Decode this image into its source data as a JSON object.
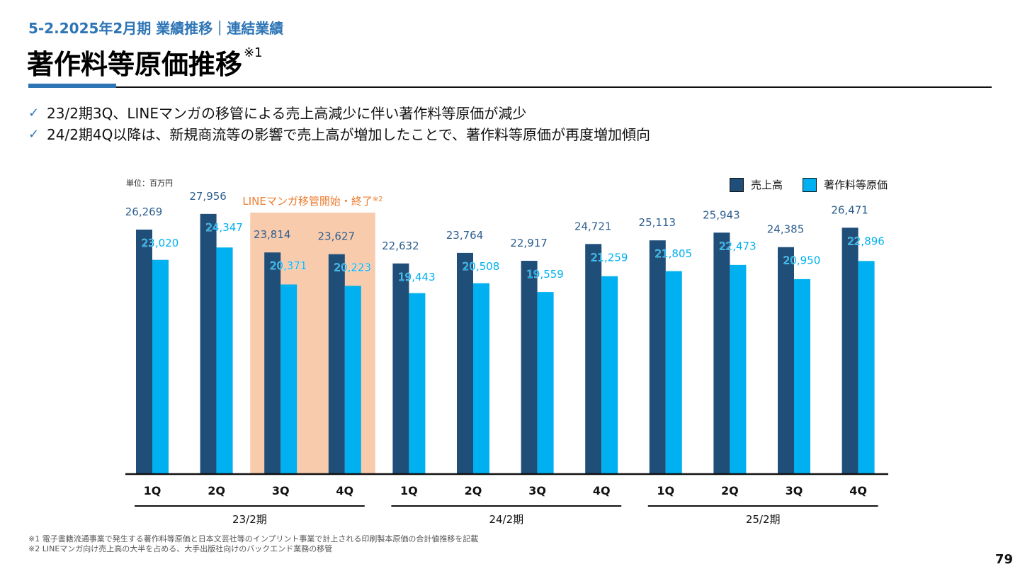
{
  "header": {
    "section_title": "5-2.2025年2月期 業績推移｜連結業績",
    "page_title": "著作料等原価推移",
    "page_title_note": "※1"
  },
  "bullets": [
    {
      "icon": "check-icon",
      "text": "23/2期3Q、LINEマンガの移管による売上高減少に伴い著作料等原価が減少"
    },
    {
      "icon": "check-icon",
      "text": "24/2期4Q以降は、新規商流等の影響で売上高が増加したことで、著作料等原価が再度増加傾向"
    }
  ],
  "chart_data": {
    "type": "bar",
    "title": "著作料等原価推移",
    "unit_label": "単位：百万円",
    "xlabel": "",
    "ylabel": "",
    "ylim": [
      0,
      28000
    ],
    "grid": false,
    "legend_position": "top-right",
    "categories": [
      "1Q",
      "2Q",
      "3Q",
      "4Q",
      "1Q",
      "2Q",
      "3Q",
      "4Q",
      "1Q",
      "2Q",
      "3Q",
      "4Q"
    ],
    "periods": [
      {
        "label": "23/2期",
        "start": 0,
        "end": 3
      },
      {
        "label": "24/2期",
        "start": 4,
        "end": 7
      },
      {
        "label": "25/2期",
        "start": 8,
        "end": 11
      }
    ],
    "series": [
      {
        "name": "売上高",
        "color": "#1f4e79",
        "values": [
          26269,
          27956,
          23814,
          23627,
          22632,
          23764,
          22917,
          24721,
          25113,
          25943,
          24385,
          26471
        ],
        "labels": [
          "26,269",
          "27,956",
          "23,814",
          "23,627",
          "22,632",
          "23,764",
          "22,917",
          "24,721",
          "25,113",
          "25,943",
          "24,385",
          "26,471"
        ]
      },
      {
        "name": "著作料等原価",
        "color": "#00b0f0",
        "values": [
          23020,
          24347,
          20371,
          20223,
          19443,
          20508,
          19559,
          21259,
          21805,
          22473,
          20950,
          22896
        ],
        "labels": [
          "23,020",
          "24,347",
          "20,371",
          "20,223",
          "19,443",
          "20,508",
          "19,559",
          "21,259",
          "21,805",
          "22,473",
          "20,950",
          "22,896"
        ]
      }
    ],
    "highlight": {
      "label": "LINEマンガ移管開始・終了",
      "note": "※2",
      "start": 2,
      "end": 3,
      "color": "#f8cbad"
    }
  },
  "footnotes": [
    "※1 電子書籍流通事業で発生する著作料等原価と日本文芸社等のインプリント事業で計上される印刷製本原価の合計値推移を記載",
    "※2 LINEマンガ向け売上高の大半を占める、大手出版社向けのバックエンド業務の移管"
  ],
  "page_number": "79"
}
